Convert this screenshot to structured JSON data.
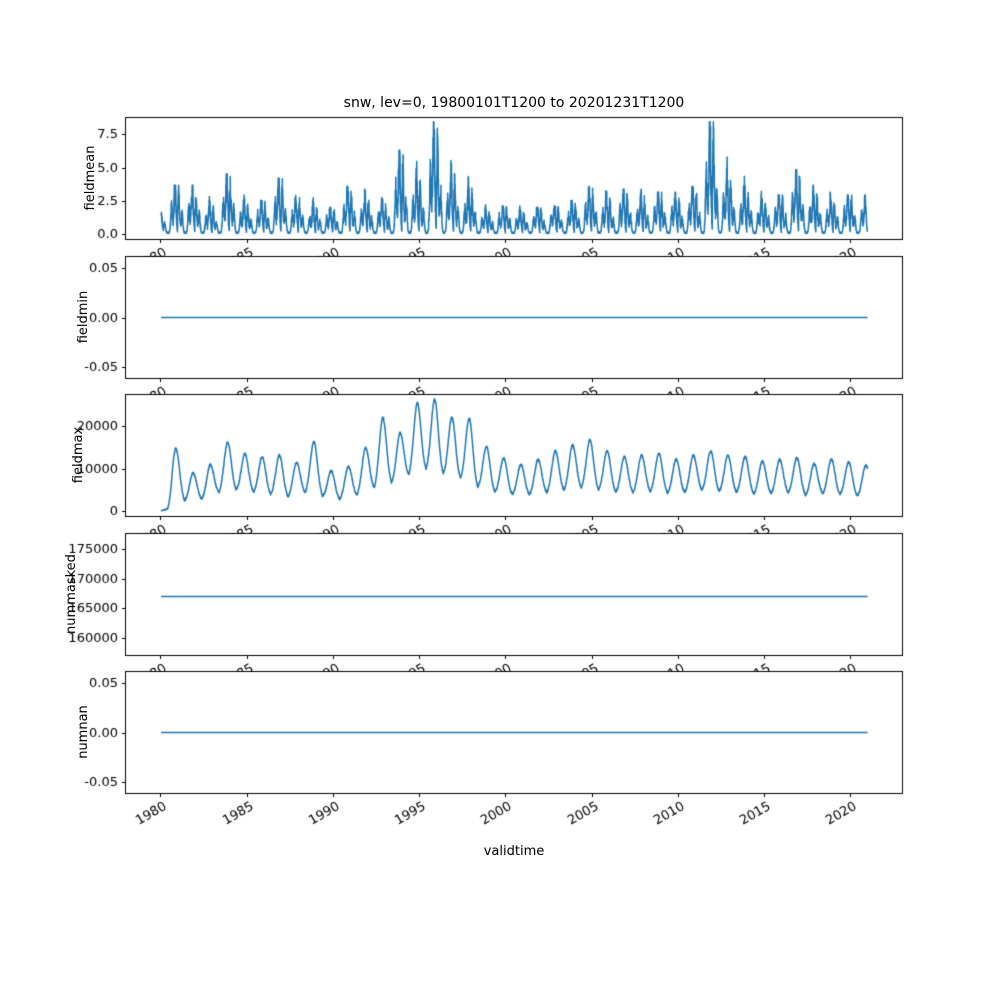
{
  "figure": {
    "title": "snw, lev=0, 19800101T1200 to 20201231T1200",
    "xlabel": "validtime",
    "background": "#ffffff",
    "line_color": "#1f77b4",
    "axes_color": "#000000"
  },
  "x_axis": {
    "label": "validtime",
    "ticks": [
      1980,
      1985,
      1990,
      1995,
      2000,
      2005,
      2010,
      2015,
      2020
    ],
    "tick_labels": [
      "1980",
      "1985",
      "1990",
      "1995",
      "2000",
      "2005",
      "2010",
      "2015",
      "2020"
    ],
    "lim": [
      1977.95,
      2023.05
    ],
    "data_start": 1980.04,
    "data_end": 2020.99,
    "tick_label_rotation_deg": 30
  },
  "chart_data": [
    {
      "type": "line",
      "ylabel": "fieldmean",
      "yticks": [
        0.0,
        2.5,
        5.0,
        7.5
      ],
      "ytick_labels": [
        "0.0",
        "2.5",
        "5.0",
        "7.5"
      ],
      "ylim": [
        -0.45,
        8.8
      ],
      "pattern": "seasonal-spikes",
      "seed": 42,
      "description": "Noisy seasonal snow-mean spikes, near 0 each summer, winter peaks per year below",
      "annual_peaks": [
        3.5,
        3.3,
        2.0,
        4.3,
        2.2,
        2.4,
        4.0,
        2.6,
        1.9,
        1.8,
        3.4,
        2.6,
        2.4,
        6.0,
        4.3,
        8.2,
        4.4,
        3.3,
        1.6,
        2.0,
        1.6,
        1.9,
        2.0,
        2.4,
        3.4,
        2.6,
        3.2,
        2.6,
        3.0,
        2.8,
        3.4,
        8.3,
        4.4,
        3.4,
        2.4,
        2.8,
        4.6,
        3.0,
        2.6,
        2.8,
        2.4
      ],
      "peak_years": [
        1980,
        1981,
        1982,
        1983,
        1984,
        1985,
        1986,
        1987,
        1988,
        1989,
        1990,
        1991,
        1992,
        1993,
        1994,
        1995,
        1996,
        1997,
        1998,
        1999,
        2000,
        2001,
        2002,
        2003,
        2004,
        2005,
        2006,
        2007,
        2008,
        2009,
        2010,
        2011,
        2012,
        2013,
        2014,
        2015,
        2016,
        2017,
        2018,
        2019,
        2020
      ]
    },
    {
      "type": "line",
      "ylabel": "fieldmin",
      "yticks": [
        -0.05,
        0.0,
        0.05
      ],
      "ytick_labels": [
        "-0.05",
        "0.00",
        "0.05"
      ],
      "ylim": [
        -0.0625,
        0.0625
      ],
      "constant_value": 0.0,
      "description": "Constant 0.00 for the full period"
    },
    {
      "type": "line",
      "ylabel": "fieldmax",
      "yticks": [
        0,
        10000,
        20000
      ],
      "ytick_labels": [
        "0",
        "10000",
        "20000"
      ],
      "ylim": [
        -1300,
        27600
      ],
      "pattern": "seasonal-smooth",
      "seed": 7,
      "description": "Smooth annual oscillation between troughs and winter peaks, maximum ~26000 around 1995",
      "annual_peaks": [
        14800,
        9000,
        11000,
        16200,
        13500,
        12800,
        13200,
        11500,
        16300,
        9500,
        10500,
        15000,
        22000,
        18500,
        25500,
        26300,
        22000,
        21800,
        15200,
        12500,
        11000,
        12200,
        14200,
        15600,
        16800,
        14200,
        12800,
        13200,
        13600,
        12200,
        13200,
        14200,
        13200,
        12800,
        11800,
        12200,
        12600,
        11200,
        12200,
        11600,
        10800
      ],
      "annual_troughs": [
        800,
        2000,
        2500,
        4000,
        4500,
        4000,
        3500,
        3000,
        4000,
        3000,
        2500,
        3500,
        5000,
        6000,
        8000,
        9000,
        8000,
        7000,
        5000,
        4000,
        3500,
        3500,
        4000,
        4500,
        5000,
        4500,
        4000,
        4000,
        4200,
        3800,
        4000,
        4500,
        4200,
        4000,
        3600,
        3800,
        4000,
        3400,
        3800,
        3600,
        3200
      ],
      "peak_years": [
        1980,
        1981,
        1982,
        1983,
        1984,
        1985,
        1986,
        1987,
        1988,
        1989,
        1990,
        1991,
        1992,
        1993,
        1994,
        1995,
        1996,
        1997,
        1998,
        1999,
        2000,
        2001,
        2002,
        2003,
        2004,
        2005,
        2006,
        2007,
        2008,
        2009,
        2010,
        2011,
        2012,
        2013,
        2014,
        2015,
        2016,
        2017,
        2018,
        2019,
        2020
      ]
    },
    {
      "type": "line",
      "ylabel": "nummasked",
      "yticks": [
        160000,
        165000,
        170000,
        175000
      ],
      "ytick_labels": [
        "160000",
        "165000",
        "170000",
        "175000"
      ],
      "ylim": [
        157000,
        177700
      ],
      "constant_value": 167000,
      "description": "Constant ~167000 masked points for the full period"
    },
    {
      "type": "line",
      "ylabel": "numnan",
      "yticks": [
        -0.05,
        0.0,
        0.05
      ],
      "ytick_labels": [
        "-0.05",
        "0.00",
        "0.05"
      ],
      "ylim": [
        -0.0625,
        0.0625
      ],
      "constant_value": 0.0,
      "description": "Constant 0.00 NaN count for the full period"
    }
  ]
}
